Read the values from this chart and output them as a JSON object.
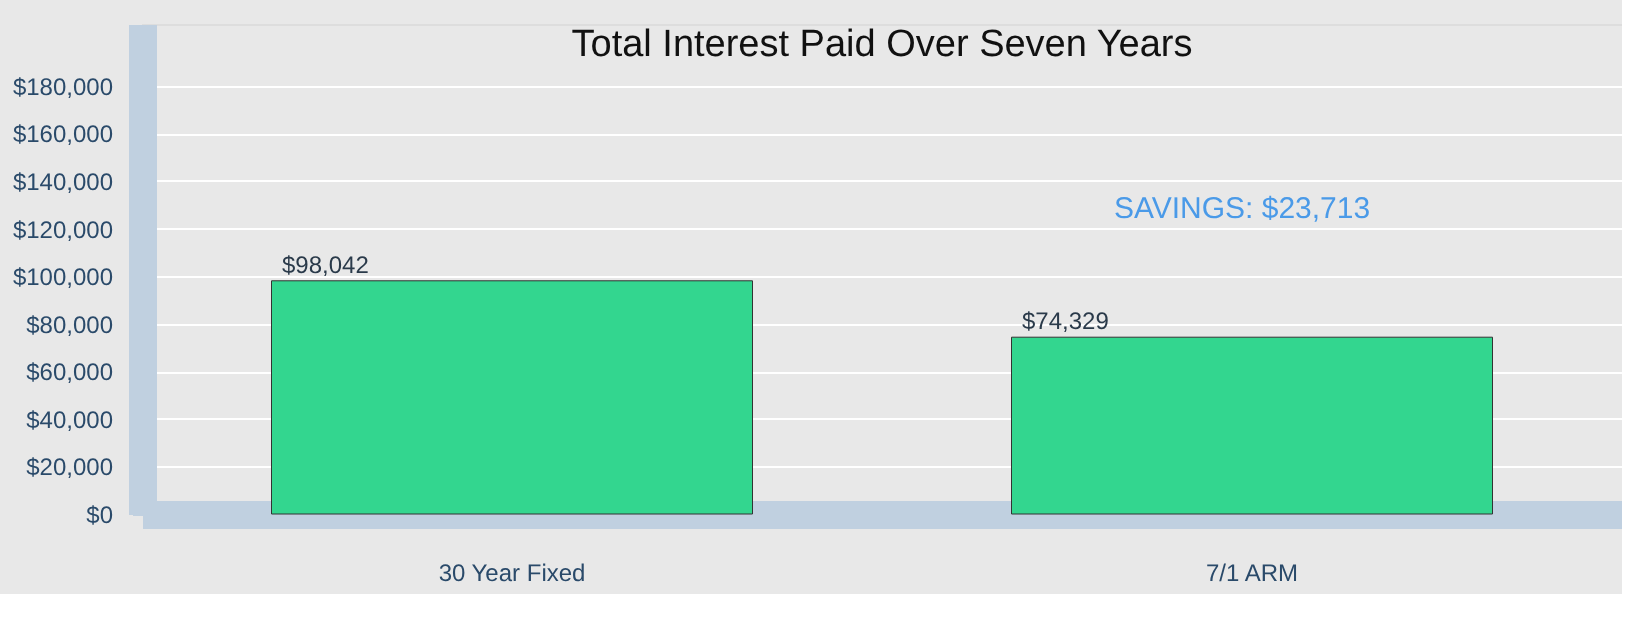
{
  "chart_data": {
    "type": "bar",
    "title": "Total Interest Paid Over Seven Years",
    "categories": [
      "30 Year Fixed",
      "7/1 ARM"
    ],
    "values": [
      98042,
      74329
    ],
    "value_labels": [
      "$98,042",
      "$74,329"
    ],
    "color": "#33d68f",
    "ylim": [
      0,
      206000
    ],
    "yticks": [
      {
        "value": 0,
        "label": "$0"
      },
      {
        "value": 20000,
        "label": "$20,000"
      },
      {
        "value": 40000,
        "label": "$40,000"
      },
      {
        "value": 60000,
        "label": "$60,000"
      },
      {
        "value": 80000,
        "label": "$80,000"
      },
      {
        "value": 100000,
        "label": "$100,000"
      },
      {
        "value": 120000,
        "label": "$120,000"
      },
      {
        "value": 140000,
        "label": "$140,000"
      },
      {
        "value": 160000,
        "label": "$160,000"
      },
      {
        "value": 180000,
        "label": "$180,000"
      }
    ],
    "grid": "y",
    "annotations": [
      "SAVINGS: $23,713"
    ]
  }
}
